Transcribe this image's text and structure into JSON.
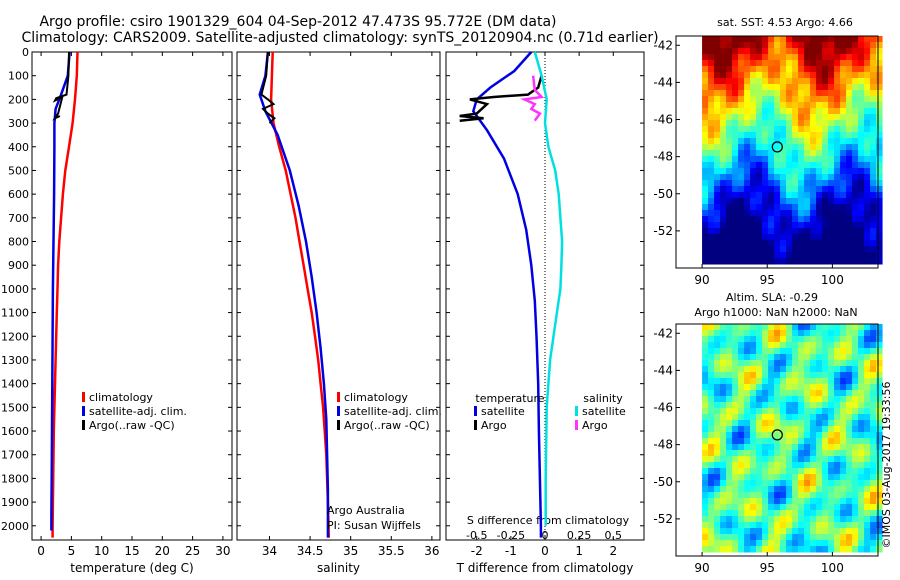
{
  "header": {
    "title_line1": "Argo profile: csiro 1901329_604 04-Sep-2012 47.473S 95.772E (DM data)",
    "title_line2": "Climatology: CARS2009. Satellite-adjusted climatology: synTS_20120904.nc (0.71d earlier)"
  },
  "colors": {
    "climatology": "#ff0000",
    "satellite": "#0000e0",
    "argo": "#000000",
    "cyan": "#00e0e0",
    "magenta": "#ff33ff"
  },
  "depth_axis": {
    "ticks": [
      0,
      100,
      200,
      300,
      400,
      500,
      600,
      700,
      800,
      900,
      1000,
      1100,
      1200,
      1300,
      1400,
      1500,
      1600,
      1700,
      1800,
      1900,
      2000
    ],
    "ylim": [
      2060,
      0
    ]
  },
  "chart_data": [
    {
      "type": "line",
      "xlabel": "temperature (deg C)",
      "xlim": [
        -1.5,
        31.5
      ],
      "xticks": [
        0,
        5,
        10,
        15,
        20,
        25,
        30
      ],
      "legend": [
        "climatology",
        "satellite-adj. clim.",
        "Argo(..raw -QC)"
      ],
      "series": [
        {
          "name": "climatology",
          "color": "#ff0000",
          "points": [
            [
              6.0,
              0
            ],
            [
              5.9,
              100
            ],
            [
              5.6,
              200
            ],
            [
              5.2,
              300
            ],
            [
              4.6,
              400
            ],
            [
              4.0,
              500
            ],
            [
              3.6,
              600
            ],
            [
              3.3,
              700
            ],
            [
              3.0,
              800
            ],
            [
              2.8,
              900
            ],
            [
              2.7,
              1000
            ],
            [
              2.6,
              1100
            ],
            [
              2.5,
              1200
            ],
            [
              2.4,
              1300
            ],
            [
              2.3,
              1400
            ],
            [
              2.2,
              1500
            ],
            [
              2.1,
              1600
            ],
            [
              2.05,
              1700
            ],
            [
              2.0,
              1800
            ],
            [
              1.95,
              1900
            ],
            [
              1.9,
              2000
            ],
            [
              1.9,
              2050
            ]
          ]
        },
        {
          "name": "satellite-adj. clim.",
          "color": "#0000e0",
          "points": [
            [
              4.7,
              0
            ],
            [
              4.4,
              100
            ],
            [
              3.3,
              180
            ],
            [
              2.4,
              240
            ],
            [
              2.2,
              300
            ],
            [
              2.2,
              400
            ],
            [
              2.15,
              600
            ],
            [
              2.05,
              800
            ],
            [
              1.95,
              1000
            ],
            [
              1.9,
              1200
            ],
            [
              1.85,
              1400
            ],
            [
              1.8,
              1600
            ],
            [
              1.75,
              1800
            ],
            [
              1.7,
              1950
            ],
            [
              1.7,
              2020
            ]
          ]
        },
        {
          "name": "Argo(..raw -QC)",
          "color": "#000000",
          "points": [
            [
              4.6,
              0
            ],
            [
              4.5,
              100
            ],
            [
              4.2,
              180
            ],
            [
              2.5,
              195
            ],
            [
              2.3,
              205
            ],
            [
              3.5,
              190
            ],
            [
              2.8,
              260
            ],
            [
              2.3,
              280
            ],
            [
              3.1,
              270
            ]
          ]
        }
      ]
    },
    {
      "type": "line",
      "xlabel": "salinity",
      "xlim": [
        33.6,
        36.1
      ],
      "xticks": [
        34,
        34.5,
        35,
        35.5,
        36
      ],
      "legend": [
        "climatology",
        "satellite-adj. clim.",
        "Argo(..raw -QC)"
      ],
      "annotations": [
        "Argo Australia",
        "PI: Susan Wijffels"
      ],
      "series": [
        {
          "name": "climatology",
          "color": "#ff0000",
          "points": [
            [
              34.04,
              0
            ],
            [
              34.03,
              100
            ],
            [
              34.02,
              200
            ],
            [
              34.05,
              300
            ],
            [
              34.12,
              400
            ],
            [
              34.2,
              500
            ],
            [
              34.26,
              600
            ],
            [
              34.32,
              700
            ],
            [
              34.37,
              800
            ],
            [
              34.42,
              900
            ],
            [
              34.47,
              1000
            ],
            [
              34.52,
              1100
            ],
            [
              34.56,
              1200
            ],
            [
              34.6,
              1300
            ],
            [
              34.63,
              1400
            ],
            [
              34.66,
              1500
            ],
            [
              34.68,
              1600
            ],
            [
              34.7,
              1700
            ],
            [
              34.71,
              1800
            ],
            [
              34.72,
              1900
            ],
            [
              34.73,
              2050
            ]
          ]
        },
        {
          "name": "satellite-adj. clim.",
          "color": "#0000e0",
          "points": [
            [
              33.98,
              0
            ],
            [
              33.95,
              100
            ],
            [
              33.88,
              180
            ],
            [
              33.95,
              250
            ],
            [
              34.1,
              350
            ],
            [
              34.25,
              500
            ],
            [
              34.36,
              650
            ],
            [
              34.45,
              800
            ],
            [
              34.52,
              950
            ],
            [
              34.58,
              1100
            ],
            [
              34.63,
              1250
            ],
            [
              34.67,
              1400
            ],
            [
              34.7,
              1550
            ],
            [
              34.71,
              1700
            ],
            [
              34.72,
              1850
            ],
            [
              34.72,
              2000
            ],
            [
              34.72,
              2050
            ]
          ]
        },
        {
          "name": "Argo(..raw -QC)",
          "color": "#000000",
          "points": [
            [
              33.98,
              0
            ],
            [
              33.96,
              100
            ],
            [
              33.9,
              180
            ],
            [
              33.98,
              200
            ],
            [
              34.05,
              220
            ],
            [
              33.92,
              240
            ],
            [
              33.98,
              260
            ],
            [
              34.06,
              280
            ],
            [
              34.0,
              300
            ]
          ]
        }
      ]
    },
    {
      "type": "line",
      "xlabel": "T difference from climatology",
      "xlabel_top": "S difference from climatology",
      "xlim": [
        -2.9,
        2.9
      ],
      "xticks": [
        -2,
        -1,
        0,
        1,
        2
      ],
      "xticks_top": [
        -0.5,
        -0.25,
        0,
        0.25,
        0.5
      ],
      "legend_left_title": "temperature",
      "legend_right_title": "salinity",
      "legend": [
        "satellite",
        "Argo",
        "satellite",
        "Argo"
      ],
      "series": [
        {
          "name": "satellite",
          "color": "#0000e0",
          "points": [
            [
              -0.4,
              0
            ],
            [
              -0.9,
              80
            ],
            [
              -1.6,
              150
            ],
            [
              -2.0,
              200
            ],
            [
              -2.1,
              250
            ],
            [
              -1.7,
              330
            ],
            [
              -1.2,
              450
            ],
            [
              -0.8,
              600
            ],
            [
              -0.55,
              750
            ],
            [
              -0.4,
              900
            ],
            [
              -0.3,
              1050
            ],
            [
              -0.25,
              1200
            ],
            [
              -0.2,
              1400
            ],
            [
              -0.18,
              1600
            ],
            [
              -0.15,
              1800
            ],
            [
              -0.12,
              2000
            ],
            [
              -0.12,
              2050
            ]
          ]
        },
        {
          "name": "Argo",
          "color": "#000000",
          "points": [
            [
              -0.1,
              100
            ],
            [
              -0.2,
              150
            ],
            [
              -0.5,
              180
            ],
            [
              -1.5,
              190
            ],
            [
              -2.2,
              200
            ],
            [
              -1.7,
              220
            ],
            [
              -2.0,
              260
            ],
            [
              -2.5,
              270
            ],
            [
              -1.8,
              280
            ],
            [
              -2.5,
              290
            ]
          ]
        },
        {
          "name": "satellite",
          "color": "#00e0e0",
          "points": [
            [
              -0.3,
              0
            ],
            [
              -0.1,
              100
            ],
            [
              0.05,
              200
            ],
            [
              0.0,
              300
            ],
            [
              0.1,
              400
            ],
            [
              0.3,
              500
            ],
            [
              0.4,
              600
            ],
            [
              0.45,
              700
            ],
            [
              0.5,
              800
            ],
            [
              0.48,
              900
            ],
            [
              0.45,
              1000
            ],
            [
              0.35,
              1100
            ],
            [
              0.25,
              1200
            ],
            [
              0.15,
              1300
            ],
            [
              0.1,
              1400
            ],
            [
              0.05,
              1500
            ],
            [
              0.04,
              1600
            ],
            [
              0.03,
              1700
            ],
            [
              0.02,
              1800
            ],
            [
              0.02,
              1900
            ],
            [
              0.02,
              2000
            ]
          ]
        },
        {
          "name": "Argo",
          "color": "#ff33ff",
          "points": [
            [
              -0.35,
              100
            ],
            [
              -0.3,
              160
            ],
            [
              -0.1,
              190
            ],
            [
              -0.6,
              200
            ],
            [
              -0.3,
              220
            ],
            [
              -0.4,
              240
            ],
            [
              -0.15,
              260
            ],
            [
              -0.3,
              290
            ]
          ]
        }
      ]
    },
    {
      "type": "heatmap",
      "title": "sat. SST: 4.53 Argo: 4.66",
      "xlim": [
        88,
        103.5
      ],
      "ylim": [
        -54,
        -41.5
      ],
      "xticks": [
        90,
        95,
        100
      ],
      "yticks": [
        -42,
        -44,
        -46,
        -48,
        -50,
        -52
      ],
      "marker": [
        95.772,
        -47.473
      ]
    },
    {
      "type": "heatmap",
      "title_line1": "Altim. SLA: -0.29",
      "title_line2": "Argo h1000: NaN h2000: NaN",
      "xlim": [
        88,
        103.5
      ],
      "ylim": [
        -54,
        -41.5
      ],
      "xticks": [
        90,
        95,
        100
      ],
      "yticks": [
        -42,
        -44,
        -46,
        -48,
        -50,
        -52
      ],
      "marker": [
        95.772,
        -47.473
      ]
    }
  ],
  "credit": "©IMOS 03-Aug-2017 19:33:56"
}
